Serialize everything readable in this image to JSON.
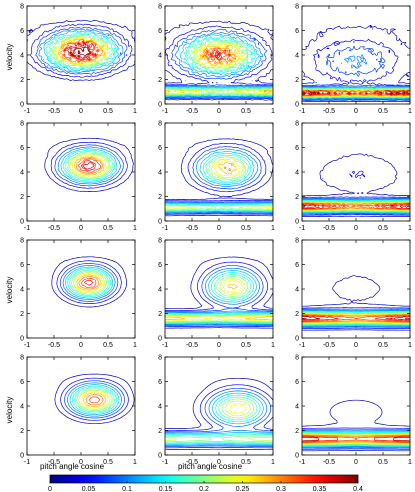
{
  "chart_data": {
    "type": "contour",
    "layout": {
      "rows": 4,
      "cols": 3
    },
    "xlabel": "pitch angle cosine",
    "ylabel": "velocity",
    "xlim": [
      -1,
      1
    ],
    "ylim": [
      0,
      8
    ],
    "xticks": [
      "-1",
      "-0.5",
      "0",
      "0.5",
      "1"
    ],
    "yticks": [
      "0",
      "2",
      "4",
      "6",
      "8"
    ],
    "grid": false,
    "colorbar": {
      "ticks": [
        "0",
        "0.05",
        "0.1",
        "0.15",
        "0.2",
        "0.25",
        "0.3",
        "0.35",
        "0.4"
      ],
      "range": [
        0,
        0.4
      ],
      "colormap": "jet"
    },
    "panels": [
      {
        "row": 0,
        "col": 0,
        "blobs": [
          {
            "x": 0.0,
            "y": 4.3,
            "sx": 0.45,
            "sy": 1.0,
            "amp": 0.42
          }
        ],
        "bands": [],
        "noise": 0.14
      },
      {
        "row": 0,
        "col": 1,
        "blobs": [
          {
            "x": 0.0,
            "y": 4.0,
            "sx": 0.5,
            "sy": 1.1,
            "amp": 0.34
          }
        ],
        "bands": [
          {
            "y": 1.0,
            "sy": 0.3,
            "amp": 0.28
          }
        ],
        "noise": 0.14
      },
      {
        "row": 0,
        "col": 2,
        "blobs": [
          {
            "x": 0.0,
            "y": 3.5,
            "sx": 0.65,
            "sy": 1.4,
            "amp": 0.1
          }
        ],
        "bands": [
          {
            "y": 0.9,
            "sy": 0.28,
            "amp": 0.4
          }
        ],
        "noise": 0.12
      },
      {
        "row": 1,
        "col": 0,
        "blobs": [
          {
            "x": 0.15,
            "y": 4.5,
            "sx": 0.35,
            "sy": 0.9,
            "amp": 0.38
          }
        ],
        "bands": [],
        "noise": 0.05
      },
      {
        "row": 1,
        "col": 1,
        "blobs": [
          {
            "x": 0.15,
            "y": 4.3,
            "sx": 0.38,
            "sy": 1.0,
            "amp": 0.3
          }
        ],
        "bands": [
          {
            "y": 1.1,
            "sy": 0.3,
            "amp": 0.26
          }
        ],
        "noise": 0.05
      },
      {
        "row": 1,
        "col": 2,
        "blobs": [
          {
            "x": 0.05,
            "y": 3.8,
            "sx": 0.6,
            "sy": 1.2,
            "amp": 0.05
          }
        ],
        "bands": [
          {
            "y": 1.2,
            "sy": 0.35,
            "amp": 0.4
          }
        ],
        "noise": 0.05
      },
      {
        "row": 2,
        "col": 0,
        "blobs": [
          {
            "x": 0.15,
            "y": 4.5,
            "sx": 0.3,
            "sy": 0.85,
            "amp": 0.36
          }
        ],
        "bands": [],
        "noise": 0.02
      },
      {
        "row": 2,
        "col": 1,
        "blobs": [
          {
            "x": 0.25,
            "y": 4.2,
            "sx": 0.35,
            "sy": 1.0,
            "amp": 0.28
          }
        ],
        "bands": [
          {
            "y": 1.6,
            "sy": 0.35,
            "amp": 0.3
          }
        ],
        "noise": 0.02
      },
      {
        "row": 2,
        "col": 2,
        "blobs": [
          {
            "x": 0.0,
            "y": 4.0,
            "sx": 0.7,
            "sy": 1.5,
            "amp": 0.03
          }
        ],
        "bands": [
          {
            "y": 1.6,
            "sy": 0.4,
            "amp": 0.4
          }
        ],
        "noise": 0.02
      },
      {
        "row": 3,
        "col": 0,
        "blobs": [
          {
            "x": 0.25,
            "y": 4.5,
            "sx": 0.32,
            "sy": 0.85,
            "amp": 0.34
          }
        ],
        "bands": [],
        "noise": 0.0
      },
      {
        "row": 3,
        "col": 1,
        "blobs": [
          {
            "x": 0.35,
            "y": 3.8,
            "sx": 0.38,
            "sy": 1.0,
            "amp": 0.27
          }
        ],
        "bands": [
          {
            "y": 1.3,
            "sy": 0.4,
            "amp": 0.24
          }
        ],
        "noise": 0.0
      },
      {
        "row": 3,
        "col": 2,
        "blobs": [
          {
            "x": 0.0,
            "y": 3.5,
            "sx": 0.8,
            "sy": 1.6,
            "amp": 0.03
          }
        ],
        "bands": [
          {
            "y": 1.3,
            "sy": 0.4,
            "amp": 0.4
          }
        ],
        "noise": 0.0
      }
    ]
  }
}
